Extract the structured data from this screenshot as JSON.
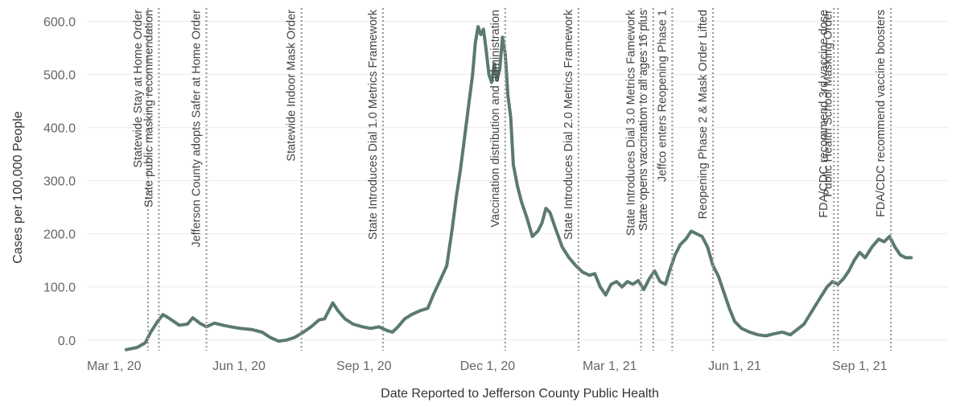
{
  "chart_data": {
    "type": "line",
    "xlabel": "Date Reported to Jefferson County Public Health",
    "ylabel": "Cases per 100,000 People",
    "ylim": [
      -20,
      625
    ],
    "xlim": [
      "2020-02-10",
      "2021-11-05"
    ],
    "grid": "horizontal",
    "line_color": "#5b7a6e",
    "y_ticks": [
      0,
      100,
      200,
      300,
      400,
      500,
      600
    ],
    "y_tick_labels": [
      "0.0",
      "100.0",
      "200.0",
      "300.0",
      "400.0",
      "500.0",
      "600.0"
    ],
    "x_ticks": [
      "2020-03-01",
      "2020-06-01",
      "2020-09-01",
      "2020-12-01",
      "2021-03-01",
      "2021-06-01",
      "2021-09-01"
    ],
    "x_tick_labels": [
      "Mar 1, 20",
      "Jun 1, 20",
      "Sep 1, 20",
      "Dec 1, 20",
      "Mar 1, 21",
      "Jun 1, 21",
      "Sep 1, 21"
    ],
    "series": [
      {
        "points": [
          [
            "2020-03-10",
            -18
          ],
          [
            "2020-03-18",
            -14
          ],
          [
            "2020-03-24",
            -5
          ],
          [
            "2020-03-28",
            15
          ],
          [
            "2020-04-02",
            35
          ],
          [
            "2020-04-06",
            48
          ],
          [
            "2020-04-10",
            42
          ],
          [
            "2020-04-14",
            35
          ],
          [
            "2020-04-18",
            28
          ],
          [
            "2020-04-24",
            30
          ],
          [
            "2020-04-28",
            42
          ],
          [
            "2020-05-03",
            32
          ],
          [
            "2020-05-08",
            25
          ],
          [
            "2020-05-14",
            32
          ],
          [
            "2020-05-20",
            28
          ],
          [
            "2020-05-26",
            25
          ],
          [
            "2020-06-02",
            22
          ],
          [
            "2020-06-10",
            20
          ],
          [
            "2020-06-18",
            15
          ],
          [
            "2020-06-24",
            5
          ],
          [
            "2020-06-30",
            -2
          ],
          [
            "2020-07-06",
            0
          ],
          [
            "2020-07-12",
            5
          ],
          [
            "2020-07-18",
            14
          ],
          [
            "2020-07-24",
            25
          ],
          [
            "2020-07-30",
            38
          ],
          [
            "2020-08-03",
            40
          ],
          [
            "2020-08-06",
            55
          ],
          [
            "2020-08-09",
            70
          ],
          [
            "2020-08-13",
            55
          ],
          [
            "2020-08-18",
            40
          ],
          [
            "2020-08-24",
            30
          ],
          [
            "2020-08-31",
            25
          ],
          [
            "2020-09-06",
            22
          ],
          [
            "2020-09-12",
            25
          ],
          [
            "2020-09-18",
            18
          ],
          [
            "2020-09-22",
            15
          ],
          [
            "2020-09-26",
            25
          ],
          [
            "2020-10-01",
            40
          ],
          [
            "2020-10-06",
            48
          ],
          [
            "2020-10-12",
            55
          ],
          [
            "2020-10-18",
            60
          ],
          [
            "2020-10-22",
            85
          ],
          [
            "2020-10-27",
            112
          ],
          [
            "2020-11-01",
            140
          ],
          [
            "2020-11-05",
            210
          ],
          [
            "2020-11-08",
            270
          ],
          [
            "2020-11-11",
            320
          ],
          [
            "2020-11-14",
            380
          ],
          [
            "2020-11-17",
            440
          ],
          [
            "2020-11-20",
            500
          ],
          [
            "2020-11-22",
            560
          ],
          [
            "2020-11-24",
            590
          ],
          [
            "2020-11-26",
            575
          ],
          [
            "2020-11-28",
            585
          ],
          [
            "2020-11-30",
            545
          ],
          [
            "2020-12-02",
            500
          ],
          [
            "2020-12-04",
            485
          ],
          [
            "2020-12-06",
            520
          ],
          [
            "2020-12-08",
            490
          ],
          [
            "2020-12-10",
            510
          ],
          [
            "2020-12-12",
            570
          ],
          [
            "2020-12-14",
            540
          ],
          [
            "2020-12-16",
            460
          ],
          [
            "2020-12-18",
            420
          ],
          [
            "2020-12-20",
            330
          ],
          [
            "2020-12-23",
            290
          ],
          [
            "2020-12-26",
            260
          ],
          [
            "2020-12-30",
            230
          ],
          [
            "2021-01-03",
            195
          ],
          [
            "2021-01-07",
            205
          ],
          [
            "2021-01-10",
            220
          ],
          [
            "2021-01-13",
            248
          ],
          [
            "2021-01-16",
            240
          ],
          [
            "2021-01-20",
            210
          ],
          [
            "2021-01-25",
            175
          ],
          [
            "2021-01-30",
            155
          ],
          [
            "2021-02-04",
            140
          ],
          [
            "2021-02-09",
            128
          ],
          [
            "2021-02-14",
            122
          ],
          [
            "2021-02-18",
            125
          ],
          [
            "2021-02-22",
            100
          ],
          [
            "2021-02-26",
            85
          ],
          [
            "2021-03-02",
            105
          ],
          [
            "2021-03-06",
            110
          ],
          [
            "2021-03-10",
            100
          ],
          [
            "2021-03-14",
            110
          ],
          [
            "2021-03-18",
            105
          ],
          [
            "2021-03-22",
            112
          ],
          [
            "2021-03-26",
            95
          ],
          [
            "2021-03-30",
            115
          ],
          [
            "2021-04-03",
            130
          ],
          [
            "2021-04-07",
            110
          ],
          [
            "2021-04-11",
            105
          ],
          [
            "2021-04-14",
            130
          ],
          [
            "2021-04-18",
            160
          ],
          [
            "2021-04-22",
            180
          ],
          [
            "2021-04-26",
            190
          ],
          [
            "2021-04-30",
            205
          ],
          [
            "2021-05-04",
            200
          ],
          [
            "2021-05-08",
            195
          ],
          [
            "2021-05-12",
            175
          ],
          [
            "2021-05-16",
            140
          ],
          [
            "2021-05-20",
            120
          ],
          [
            "2021-05-24",
            90
          ],
          [
            "2021-05-28",
            60
          ],
          [
            "2021-06-01",
            35
          ],
          [
            "2021-06-06",
            22
          ],
          [
            "2021-06-12",
            15
          ],
          [
            "2021-06-18",
            10
          ],
          [
            "2021-06-24",
            8
          ],
          [
            "2021-06-30",
            12
          ],
          [
            "2021-07-06",
            15
          ],
          [
            "2021-07-12",
            10
          ],
          [
            "2021-07-16",
            18
          ],
          [
            "2021-07-22",
            30
          ],
          [
            "2021-07-28",
            55
          ],
          [
            "2021-08-03",
            80
          ],
          [
            "2021-08-08",
            100
          ],
          [
            "2021-08-12",
            110
          ],
          [
            "2021-08-16",
            105
          ],
          [
            "2021-08-20",
            115
          ],
          [
            "2021-08-24",
            130
          ],
          [
            "2021-08-28",
            150
          ],
          [
            "2021-09-01",
            165
          ],
          [
            "2021-09-05",
            155
          ],
          [
            "2021-09-10",
            175
          ],
          [
            "2021-09-15",
            190
          ],
          [
            "2021-09-19",
            185
          ],
          [
            "2021-09-23",
            195
          ],
          [
            "2021-09-27",
            175
          ],
          [
            "2021-10-01",
            160
          ],
          [
            "2021-10-05",
            155
          ],
          [
            "2021-10-09",
            155
          ]
        ]
      }
    ],
    "annotations": [
      {
        "date": "2020-03-26",
        "text": "Statewide Stay at Home Order"
      },
      {
        "date": "2020-04-03",
        "text": "State public masking recommendation"
      },
      {
        "date": "2020-05-08",
        "text": "Jefferson County adopts Safer at Home Order"
      },
      {
        "date": "2020-07-17",
        "text": "Statewide Indoor Mask Order"
      },
      {
        "date": "2020-09-15",
        "text": "State Introduces Dial 1.0 Metrics Framework"
      },
      {
        "date": "2020-12-14",
        "text": "Vaccination distribution and administration"
      },
      {
        "date": "2021-02-06",
        "text": "State Introduces Dial 2.0 Metrics Framework"
      },
      {
        "date": "2021-03-24",
        "text": "State Introduces Dial 3.0 Metrics Famework"
      },
      {
        "date": "2021-04-02",
        "text": "State opens vaccination to all ages 16 plus"
      },
      {
        "date": "2021-04-16",
        "text": "Jeffco enters Reopening Phase 1"
      },
      {
        "date": "2021-05-16",
        "text": "Reopening Phase 2 & Mask Order Lifted"
      },
      {
        "date": "2021-08-13",
        "text": "FDA/CDC recommend 3rd vaccine dose"
      },
      {
        "date": "2021-08-16",
        "text": "Public Health School Masking Order"
      },
      {
        "date": "2021-09-24",
        "text": "FDA/CDC recommend vaccine boosters"
      }
    ]
  }
}
